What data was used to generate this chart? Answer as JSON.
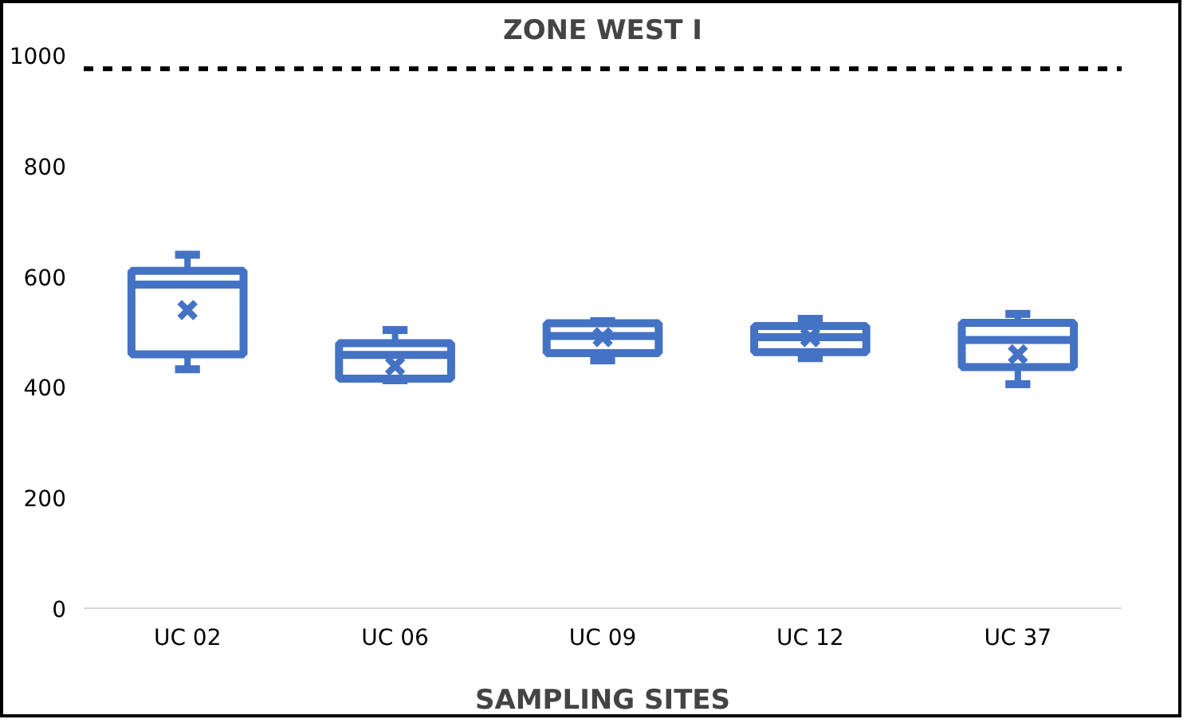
{
  "chart_data": {
    "type": "box",
    "title": "ZONE WEST I",
    "xlabel": "SAMPLING SITES",
    "categories": [
      "UC 02",
      "UC 06",
      "UC 09",
      "UC 12",
      "UC 37"
    ],
    "boxes": [
      {
        "low": 432,
        "q1": 459,
        "median": 585,
        "q3": 610,
        "high": 639,
        "mean": 539
      },
      {
        "low": 412,
        "q1": 415,
        "median": 458,
        "q3": 479,
        "high": 503,
        "mean": 438
      },
      {
        "low": 448,
        "q1": 461,
        "median": 492,
        "q3": 515,
        "high": 519,
        "mean": 490
      },
      {
        "low": 452,
        "q1": 463,
        "median": 490,
        "q3": 510,
        "high": 523,
        "mean": 490
      },
      {
        "low": 405,
        "q1": 436,
        "median": 485,
        "q3": 516,
        "high": 532,
        "mean": 459
      }
    ],
    "color": "#4472c4",
    "marker": "cross",
    "ylim": [
      0,
      1000
    ],
    "yticks": [
      0,
      200,
      400,
      600,
      800,
      1000
    ],
    "grid": false,
    "ref_lines": [
      {
        "axis": "y",
        "value": 975,
        "color": "#000000",
        "line_style": "dashed"
      }
    ]
  }
}
